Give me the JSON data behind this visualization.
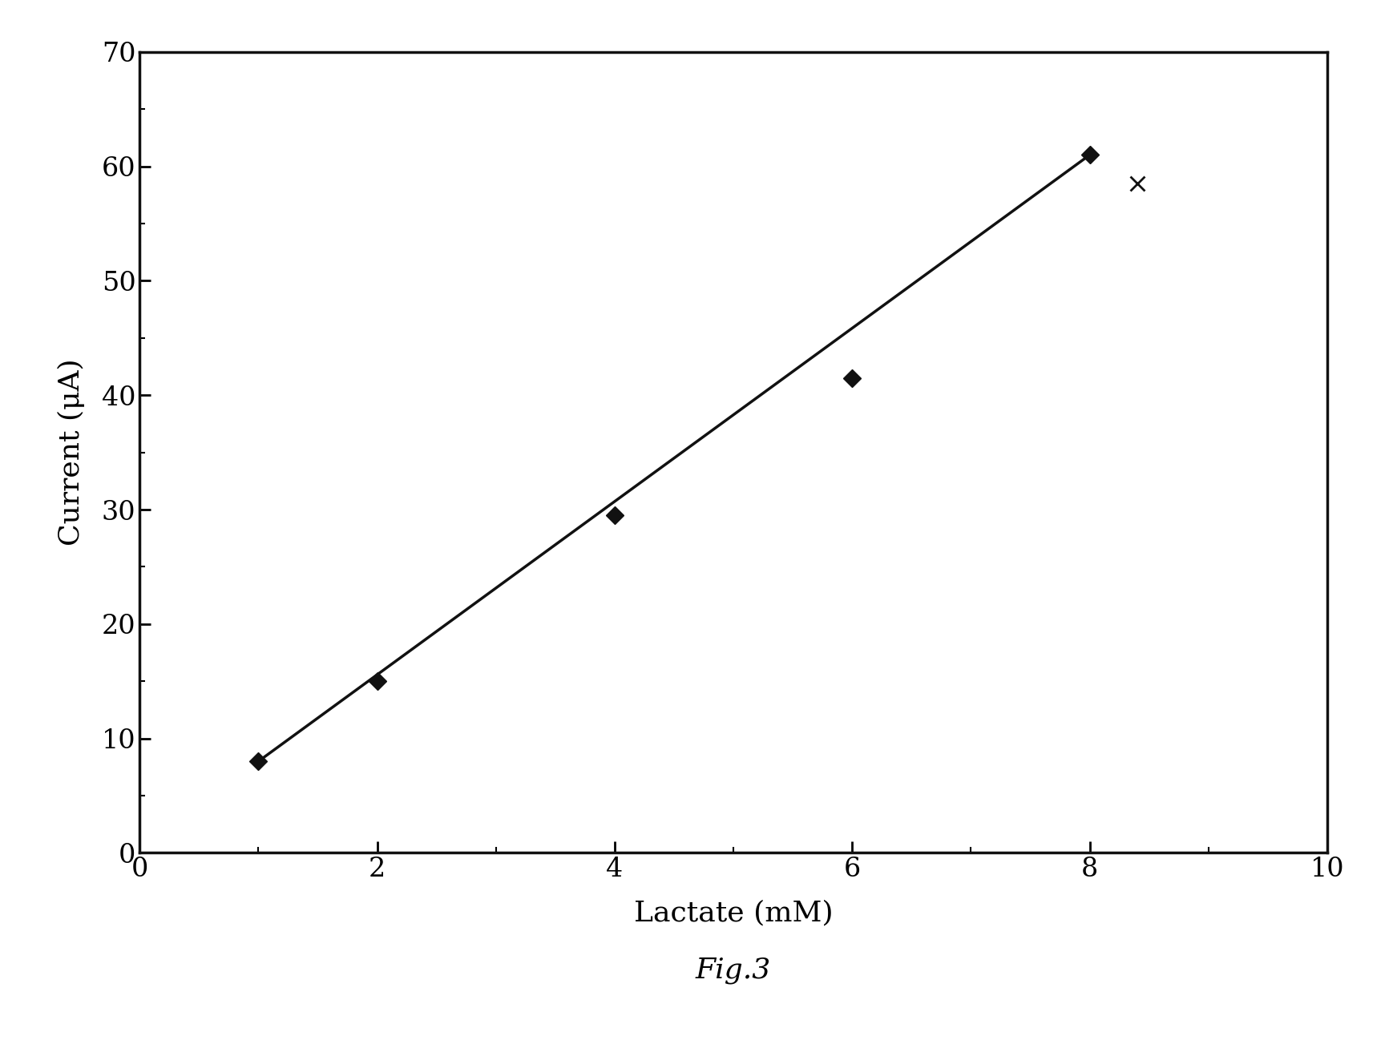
{
  "x_data": [
    1,
    2,
    4,
    6,
    8
  ],
  "y_data": [
    8,
    15,
    29.5,
    41.5,
    61
  ],
  "x_extra": [
    8.4
  ],
  "y_extra": [
    58.5
  ],
  "line_x": [
    1,
    8
  ],
  "line_y": [
    8,
    61
  ],
  "xlim": [
    0,
    10
  ],
  "ylim": [
    0,
    70
  ],
  "xticks": [
    0,
    2,
    4,
    6,
    8,
    10
  ],
  "yticks": [
    0,
    10,
    20,
    30,
    40,
    50,
    60,
    70
  ],
  "xlabel": "Lactate (mM)",
  "ylabel": "Current (μA)",
  "caption": "Fig.3",
  "bg_color": "#ffffff",
  "line_color": "#111111",
  "marker_color": "#111111",
  "figwidth": 17.43,
  "figheight": 12.98,
  "dpi": 100
}
